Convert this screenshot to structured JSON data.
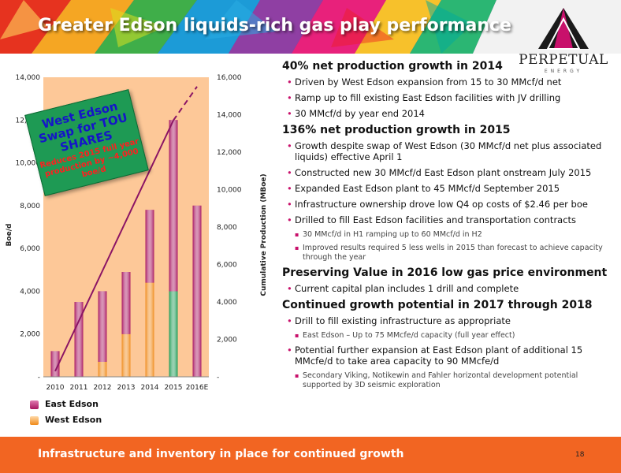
{
  "slide": {
    "title": "Greater Edson liquids-rich gas play performance",
    "footer": "Infrastructure and inventory in place for continued growth",
    "page_number": "18"
  },
  "logo": {
    "wordmark": "PERPETUAL",
    "sub": "ENERGY",
    "icon": "pyramid-logo-icon"
  },
  "callout": {
    "headline": "West Edson Swap for TOU SHARES",
    "subtext": "Reduces 2015 full year production by ~4,000 boe/d",
    "color": "#1e9a54"
  },
  "legend": [
    {
      "label": "East Edson",
      "color": "#a8145f"
    },
    {
      "label": "West Edson",
      "color": "#f08a1a"
    }
  ],
  "sections": [
    {
      "heading": "40% net production growth in 2014",
      "bullets": [
        {
          "level": 1,
          "text": "Driven by West Edson expansion from 15 to 30 MMcf/d net"
        },
        {
          "level": 1,
          "text": "Ramp up to fill existing East Edson facilities with JV drilling"
        },
        {
          "level": 1,
          "text": "30 MMcf/d by year end 2014"
        }
      ]
    },
    {
      "heading": "136% net production growth in 2015",
      "bullets": [
        {
          "level": 1,
          "text": "Growth despite swap of West Edson (30 MMcf/d net plus associated liquids) effective April 1"
        },
        {
          "level": 1,
          "text": "Constructed new 30 MMcf/d East Edson plant onstream July 2015"
        },
        {
          "level": 1,
          "text": "Expanded East Edson plant to 45 MMcf/d September 2015"
        },
        {
          "level": 1,
          "text": "Infrastructure ownership drove low Q4 op costs of $2.46 per boe"
        },
        {
          "level": 1,
          "text": "Drilled to fill East Edson facilities and transportation contracts"
        },
        {
          "level": 2,
          "text": "30 MMcf/d in H1 ramping up to 60 MMcf/d in H2"
        },
        {
          "level": 2,
          "text": "Improved results required 5 less wells in 2015 than forecast to achieve capacity through the year"
        }
      ]
    },
    {
      "heading": "Preserving Value in 2016 low gas price environment",
      "bullets": [
        {
          "level": 1,
          "text": "Current capital plan includes 1 drill and complete"
        }
      ]
    },
    {
      "heading": "Continued growth potential in 2017 through 2018",
      "bullets": [
        {
          "level": 1,
          "text": "Drill to fill existing infrastructure as appropriate"
        },
        {
          "level": 2,
          "text": "East Edson – Up to 75 MMcfe/d capacity (full year effect)"
        },
        {
          "level": 1,
          "text": "Potential further expansion at East Edson plant of additional 15 MMcfe/d to take area capacity to 90 MMcfe/d"
        },
        {
          "level": 2,
          "text": "Secondary Viking, Notikewin and Fahler horizontal development potential supported by 3D seismic exploration"
        }
      ]
    }
  ],
  "chart_data": {
    "type": "bar",
    "categories": [
      "2010",
      "2011",
      "2012",
      "2013",
      "2014",
      "2015",
      "2016E"
    ],
    "series": [
      {
        "name": "East Edson",
        "values": [
          1200,
          3500,
          3300,
          2900,
          3400,
          8000,
          8000
        ],
        "color": "#a8145f"
      },
      {
        "name": "West Edson",
        "values": [
          0,
          0,
          700,
          2000,
          4400,
          0,
          0
        ],
        "color": "#f08a1a"
      },
      {
        "name": "",
        "values": [
          0,
          0,
          0,
          0,
          0,
          4000,
          0
        ],
        "color": "#1e9a54"
      }
    ],
    "line_series": {
      "name": "Cumulative Production (MBoe)",
      "actual": {
        "x": [
          "2010",
          "2015"
        ],
        "y": [
          300,
          13700
        ]
      },
      "projected": {
        "x": [
          "2015",
          "2016E"
        ],
        "y": [
          13700,
          15500
        ]
      },
      "color": "#8b1464"
    },
    "ylabel": "Boe/d",
    "y2label": "Cumulative Production (MBoe)",
    "ylim": [
      0,
      14000
    ],
    "y2lim": [
      0,
      16000
    ],
    "yticks": [
      "-",
      "2,000",
      "4,000",
      "6,000",
      "8,000",
      "10,000",
      "12,000",
      "14,000"
    ],
    "y2ticks": [
      "-",
      "2,000",
      "4,000",
      "6,000",
      "8,000",
      "10,000",
      "12,000",
      "14,000",
      "16,000"
    ],
    "plot_background": "#fdc898",
    "grid": false
  }
}
